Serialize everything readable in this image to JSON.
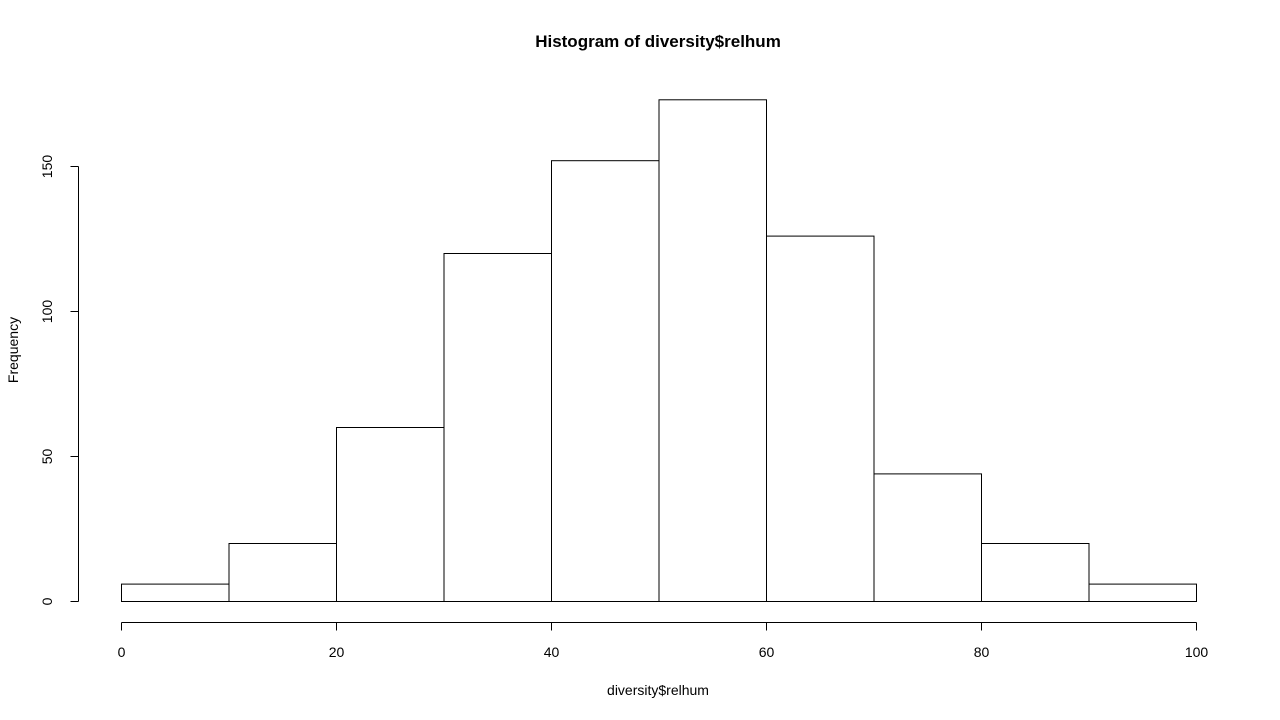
{
  "chart_data": {
    "type": "bar",
    "title": "Histogram of diversity$relhum",
    "xlabel": "diversity$relhum",
    "ylabel": "Frequency",
    "bin_edges": [
      0,
      10,
      20,
      30,
      40,
      50,
      60,
      70,
      80,
      90,
      100
    ],
    "values": [
      6,
      20,
      60,
      120,
      152,
      173,
      126,
      44,
      20,
      6
    ],
    "xlim": [
      0,
      100
    ],
    "ylim": [
      0,
      175
    ],
    "x_ticks": [
      0,
      20,
      40,
      60,
      80,
      100
    ],
    "y_ticks": [
      0,
      50,
      100,
      150
    ],
    "grid": false,
    "bar_fill": "#ffffff",
    "bar_stroke": "#000000"
  }
}
